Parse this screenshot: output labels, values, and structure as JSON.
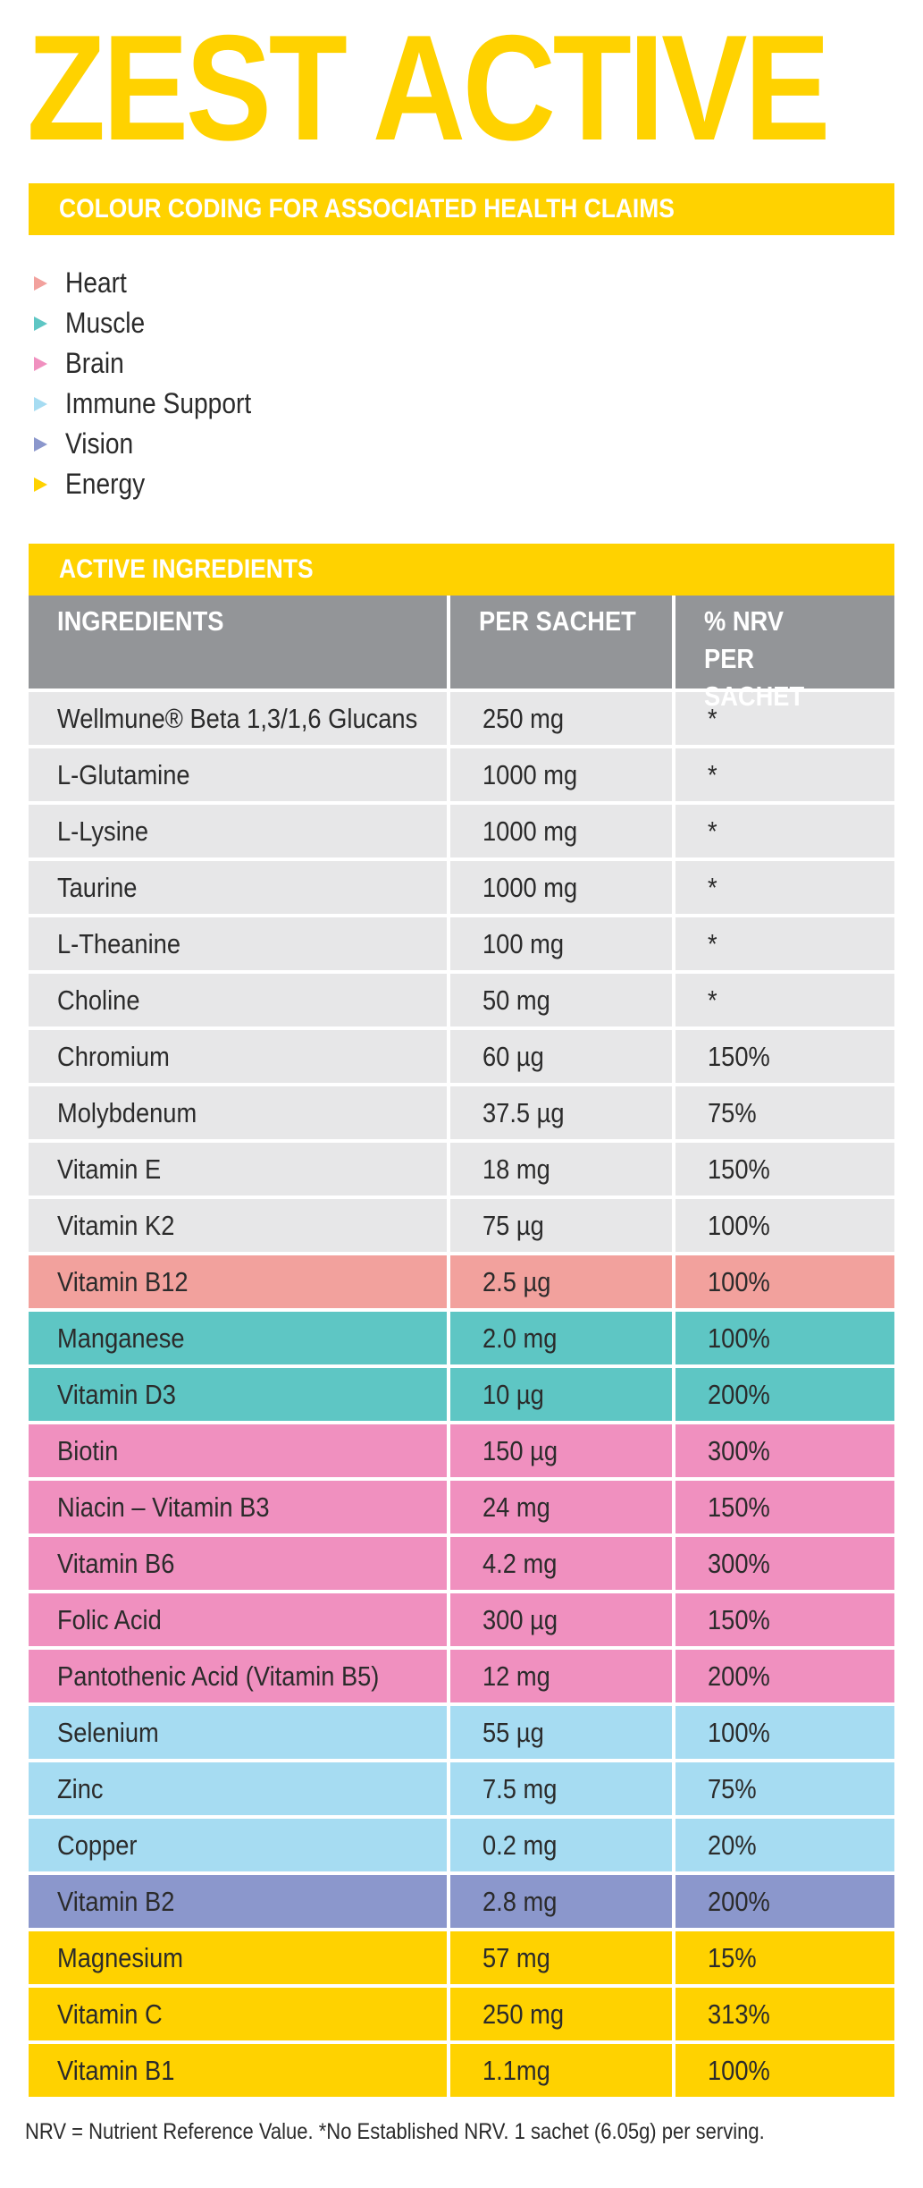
{
  "title": "ZEST ACTIVE",
  "colour_section": {
    "heading": "COLOUR CODING FOR ASSOCIATED HEALTH CLAIMS",
    "items": [
      {
        "label": "Heart",
        "color": "#f2a19d"
      },
      {
        "label": "Muscle",
        "color": "#5ec6c4"
      },
      {
        "label": "Brain",
        "color": "#f090bf"
      },
      {
        "label": "Immune Support",
        "color": "#a6dcf2"
      },
      {
        "label": "Vision",
        "color": "#8b97cc"
      },
      {
        "label": "Energy",
        "color": "#ffd200"
      }
    ]
  },
  "ingredients_section": {
    "heading": "ACTIVE INGREDIENTS",
    "headers": [
      "INGREDIENTS",
      "PER SACHET",
      "% NRV PER SACHET"
    ],
    "rows": [
      {
        "name": "Wellmune® Beta 1,3/1,6 Glucans",
        "per_sachet": "250 mg",
        "nrv": "*",
        "color": "#e7e7e8"
      },
      {
        "name": "L-Glutamine",
        "per_sachet": "1000 mg",
        "nrv": "*",
        "color": "#e7e7e8"
      },
      {
        "name": "L-Lysine",
        "per_sachet": "1000 mg",
        "nrv": "*",
        "color": "#e7e7e8"
      },
      {
        "name": "Taurine",
        "per_sachet": "1000 mg",
        "nrv": "*",
        "color": "#e7e7e8"
      },
      {
        "name": "L-Theanine",
        "per_sachet": "100 mg",
        "nrv": "*",
        "color": "#e7e7e8"
      },
      {
        "name": "Choline",
        "per_sachet": "50 mg",
        "nrv": "*",
        "color": "#e7e7e8"
      },
      {
        "name": "Chromium",
        "per_sachet": "60 µg",
        "nrv": "150%",
        "color": "#e7e7e8"
      },
      {
        "name": "Molybdenum",
        "per_sachet": "37.5 µg",
        "nrv": "75%",
        "color": "#e7e7e8"
      },
      {
        "name": "Vitamin E",
        "per_sachet": "18 mg",
        "nrv": "150%",
        "color": "#e7e7e8"
      },
      {
        "name": "Vitamin K2",
        "per_sachet": "75 µg",
        "nrv": "100%",
        "color": "#e7e7e8"
      },
      {
        "name": "Vitamin B12",
        "per_sachet": "2.5 µg",
        "nrv": "100%",
        "color": "#f2a19d"
      },
      {
        "name": "Manganese",
        "per_sachet": "2.0 mg",
        "nrv": "100%",
        "color": "#5ec6c4"
      },
      {
        "name": "Vitamin D3",
        "per_sachet": "10 µg",
        "nrv": "200%",
        "color": "#5ec6c4"
      },
      {
        "name": "Biotin",
        "per_sachet": "150 µg",
        "nrv": "300%",
        "color": "#f090bf"
      },
      {
        "name": "Niacin – Vitamin B3",
        "per_sachet": "24 mg",
        "nrv": "150%",
        "color": "#f090bf"
      },
      {
        "name": "Vitamin B6",
        "per_sachet": "4.2 mg",
        "nrv": "300%",
        "color": "#f090bf"
      },
      {
        "name": "Folic Acid",
        "per_sachet": "300 µg",
        "nrv": "150%",
        "color": "#f090bf"
      },
      {
        "name": "Pantothenic Acid (Vitamin B5)",
        "per_sachet": "12 mg",
        "nrv": "200%",
        "color": "#f090bf"
      },
      {
        "name": "Selenium",
        "per_sachet": "55 µg",
        "nrv": "100%",
        "color": "#a6dcf2"
      },
      {
        "name": "Zinc",
        "per_sachet": "7.5 mg",
        "nrv": "75%",
        "color": "#a6dcf2"
      },
      {
        "name": "Copper",
        "per_sachet": "0.2 mg",
        "nrv": "20%",
        "color": "#a6dcf2"
      },
      {
        "name": "Vitamin B2",
        "per_sachet": "2.8 mg",
        "nrv": "200%",
        "color": "#8b97cc"
      },
      {
        "name": "Magnesium",
        "per_sachet": "57 mg",
        "nrv": "15%",
        "color": "#ffd200"
      },
      {
        "name": "Vitamin C",
        "per_sachet": "250 mg",
        "nrv": "313%",
        "color": "#ffd200"
      },
      {
        "name": "Vitamin B1",
        "per_sachet": "1.1mg",
        "nrv": "100%",
        "color": "#ffd200"
      }
    ]
  },
  "footer": "NRV = Nutrient Reference Value. *No Established NRV. 1 sachet (6.05g) per serving."
}
